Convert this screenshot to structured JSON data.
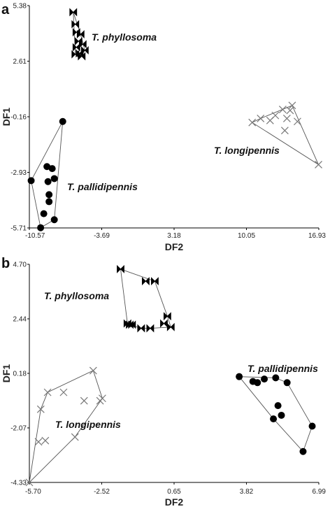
{
  "chart_data": [
    {
      "panel": "a",
      "type": "scatter",
      "xlabel": "DF2",
      "ylabel": "DF1",
      "xticks": [
        "-10.57",
        "-3.69",
        "3.18",
        "10.05",
        "16.93"
      ],
      "yticks": [
        "5.38",
        "2.61",
        "-0.16",
        "-2.93",
        "-5.71"
      ],
      "xlim": [
        -10.57,
        16.93
      ],
      "ylim": [
        -5.71,
        5.38
      ],
      "grid": false,
      "series": [
        {
          "name": "T. phyllosoma",
          "marker": "bowtie",
          "hull": true,
          "points": [
            [
              -6.4,
              5.05
            ],
            [
              -6.2,
              4.45
            ],
            [
              -6.1,
              4.05
            ],
            [
              -5.7,
              3.95
            ],
            [
              -5.9,
              3.6
            ],
            [
              -5.5,
              3.45
            ],
            [
              -6.1,
              3.3
            ],
            [
              -5.3,
              3.15
            ],
            [
              -5.8,
              3.0
            ],
            [
              -6.2,
              2.95
            ],
            [
              -5.6,
              2.85
            ]
          ]
        },
        {
          "name": "T. longipennis",
          "marker": "x",
          "hull": true,
          "points": [
            [
              10.6,
              -0.45
            ],
            [
              11.4,
              -0.25
            ],
            [
              12.3,
              -0.35
            ],
            [
              12.8,
              -0.1
            ],
            [
              13.5,
              0.2
            ],
            [
              13.9,
              -0.25
            ],
            [
              14.2,
              0.15
            ],
            [
              14.4,
              0.4
            ],
            [
              14.9,
              -0.4
            ],
            [
              13.7,
              -0.85
            ],
            [
              16.9,
              -2.55
            ]
          ]
        },
        {
          "name": "T. pallidipennis",
          "marker": "circle",
          "hull": true,
          "points": [
            [
              -7.4,
              -0.4
            ],
            [
              -10.4,
              -3.35
            ],
            [
              -8.9,
              -2.65
            ],
            [
              -8.4,
              -2.75
            ],
            [
              -8.2,
              -3.25
            ],
            [
              -8.8,
              -3.4
            ],
            [
              -8.7,
              -4.05
            ],
            [
              -8.7,
              -4.4
            ],
            [
              -9.2,
              -5.0
            ],
            [
              -8.2,
              -5.3
            ],
            [
              -9.5,
              -5.7
            ]
          ]
        }
      ]
    },
    {
      "panel": "b",
      "type": "scatter",
      "xlabel": "DF2",
      "ylabel": "DF1",
      "xticks": [
        "-5.70",
        "-2.52",
        "0.65",
        "3.82",
        "6.99"
      ],
      "yticks": [
        "4.70",
        "2.44",
        "0.18",
        "-2.07",
        "-4.33"
      ],
      "xlim": [
        -5.7,
        6.99
      ],
      "ylim": [
        -4.33,
        4.7
      ],
      "grid": false,
      "series": [
        {
          "name": "T. phyllosoma",
          "marker": "bowtie",
          "hull": true,
          "points": [
            [
              -1.7,
              4.5
            ],
            [
              -0.6,
              4.0
            ],
            [
              -0.2,
              4.0
            ],
            [
              0.35,
              2.55
            ],
            [
              0.2,
              2.25
            ],
            [
              0.5,
              2.1
            ],
            [
              -0.4,
              2.05
            ],
            [
              -0.8,
              2.05
            ],
            [
              -1.3,
              2.2
            ],
            [
              -1.4,
              2.25
            ],
            [
              -1.2,
              2.2
            ]
          ]
        },
        {
          "name": "T. longipennis",
          "marker": "x",
          "hull": true,
          "points": [
            [
              -2.9,
              0.3
            ],
            [
              -4.2,
              -0.6
            ],
            [
              -4.9,
              -0.6
            ],
            [
              -3.3,
              -0.95
            ],
            [
              -5.2,
              -1.3
            ],
            [
              -2.6,
              -0.95
            ],
            [
              -2.5,
              -0.85
            ],
            [
              -5.3,
              -2.65
            ],
            [
              -5.0,
              -2.6
            ],
            [
              -3.7,
              -2.45
            ],
            [
              -5.7,
              -4.33
            ]
          ]
        },
        {
          "name": "T. pallidipennis",
          "marker": "circle",
          "hull": true,
          "points": [
            [
              3.5,
              0.05
            ],
            [
              4.1,
              -0.15
            ],
            [
              4.3,
              -0.2
            ],
            [
              4.6,
              -0.05
            ],
            [
              5.1,
              0.0
            ],
            [
              5.6,
              -0.2
            ],
            [
              5.2,
              -1.15
            ],
            [
              5.35,
              -1.55
            ],
            [
              6.7,
              -2.0
            ],
            [
              6.3,
              -3.05
            ],
            [
              5.0,
              -1.7
            ]
          ]
        }
      ]
    }
  ]
}
